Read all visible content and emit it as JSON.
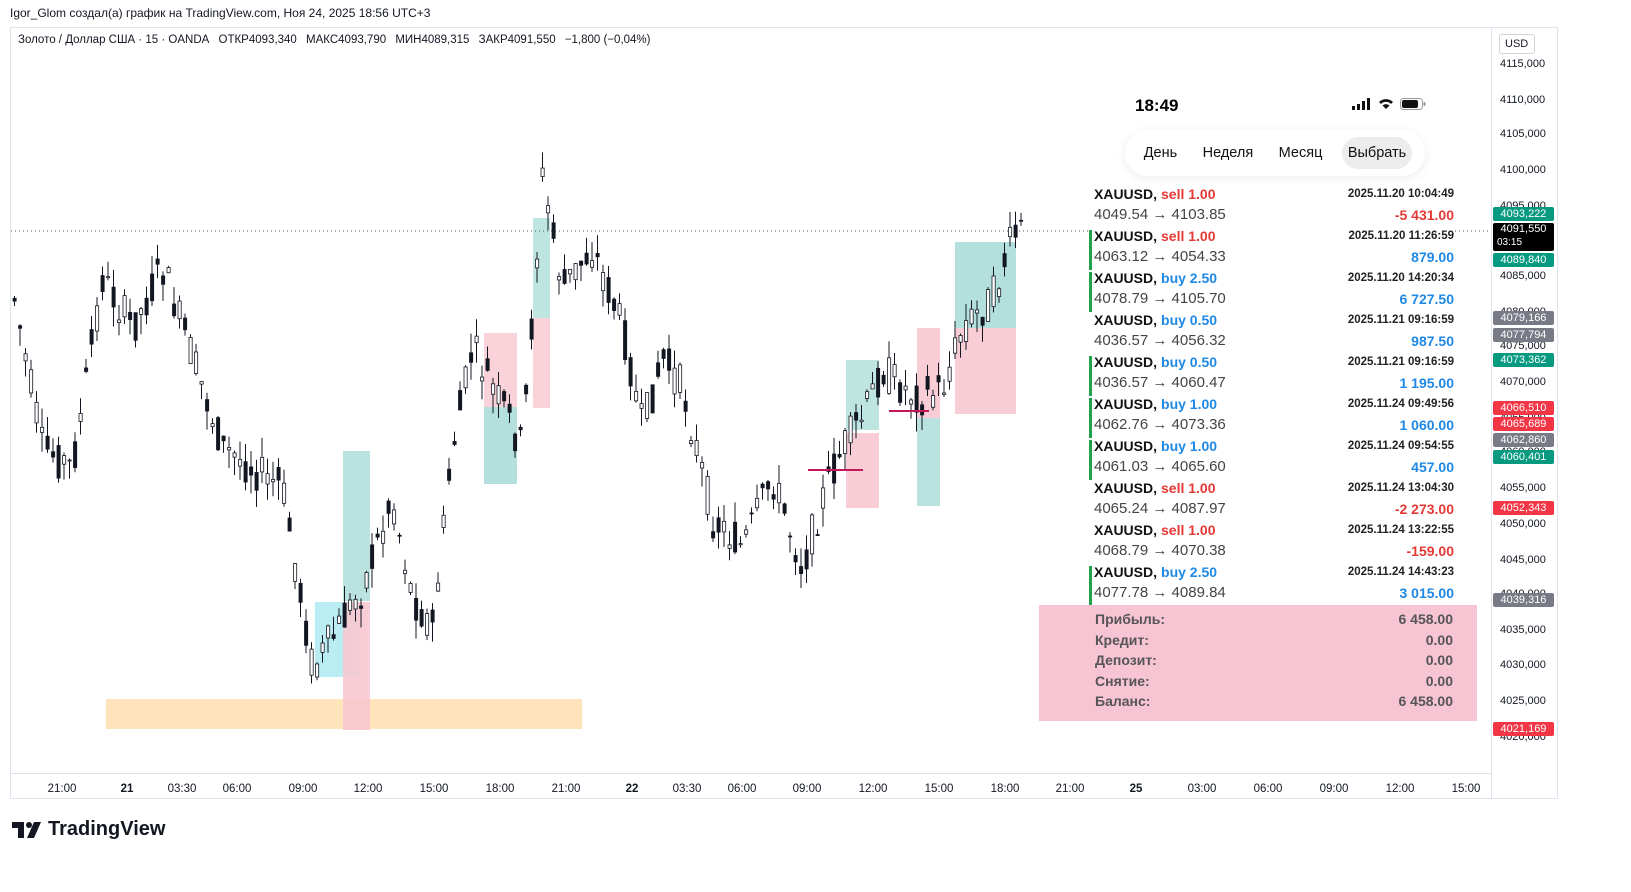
{
  "header_line": "Igor_Glom создал(а) график на TradingView.com, Ноя 24, 2025 18:56 UTC+3",
  "symbol_line": {
    "name": "Золото / Доллар США · 15 · OANDA",
    "open": "ОТКР4093,340",
    "high": "МАКС4093,790",
    "low": "МИН4089,315",
    "close": "ЗАКР4091,550",
    "change": "−1,800 (−0,04%)"
  },
  "currency": "USD",
  "price_ticks": [
    "4115,000",
    "4110,000",
    "4105,000",
    "4100,000",
    "4095,000",
    "4090,000",
    "4085,000",
    "4080,000",
    "4075,000",
    "4070,000",
    "4065,000",
    "4060,000",
    "4055,000",
    "4050,000",
    "4045,000",
    "4040,000",
    "4035,000",
    "4030,000",
    "4025,000",
    "4020,000"
  ],
  "price_labels": [
    {
      "text": "4093,222",
      "color": "#089981"
    },
    {
      "text": "4091,550",
      "sub": "03:15",
      "color": "#000000"
    },
    {
      "text": "4089,840",
      "color": "#089981"
    },
    {
      "text": "4079,166",
      "color": "#787b86"
    },
    {
      "text": "4077,794",
      "color": "#787b86"
    },
    {
      "text": "4073,362",
      "color": "#089981"
    },
    {
      "text": "4066,510",
      "color": "#f23645"
    },
    {
      "text": "4065,689",
      "color": "#f23645"
    },
    {
      "text": "4062,860",
      "color": "#787b86"
    },
    {
      "text": "4060,401",
      "color": "#089981"
    },
    {
      "text": "4052,343",
      "color": "#f23645"
    },
    {
      "text": "4039,316",
      "color": "#787b86"
    },
    {
      "text": "4021,169",
      "color": "#f23645"
    }
  ],
  "time_ticks": [
    {
      "text": "21:00",
      "bold": false
    },
    {
      "text": "21",
      "bold": true
    },
    {
      "text": "03:30",
      "bold": false
    },
    {
      "text": "06:00",
      "bold": false
    },
    {
      "text": "09:00",
      "bold": false
    },
    {
      "text": "12:00",
      "bold": false
    },
    {
      "text": "15:00",
      "bold": false
    },
    {
      "text": "18:00",
      "bold": false
    },
    {
      "text": "21:00",
      "bold": false
    },
    {
      "text": "22",
      "bold": true
    },
    {
      "text": "03:30",
      "bold": false
    },
    {
      "text": "06:00",
      "bold": false
    },
    {
      "text": "09:00",
      "bold": false
    },
    {
      "text": "12:00",
      "bold": false
    },
    {
      "text": "15:00",
      "bold": false
    },
    {
      "text": "18:00",
      "bold": false
    },
    {
      "text": "21:00",
      "bold": false
    },
    {
      "text": "25",
      "bold": true
    },
    {
      "text": "03:00",
      "bold": false
    },
    {
      "text": "06:00",
      "bold": false
    },
    {
      "text": "09:00",
      "bold": false
    },
    {
      "text": "12:00",
      "bold": false
    },
    {
      "text": "15:00",
      "bold": false
    }
  ],
  "logo_text": "TradingView",
  "phone": {
    "time": "18:49",
    "tabs": [
      "День",
      "Неделя",
      "Месяц",
      "Выбрать"
    ],
    "selected_tab": "Выбрать",
    "trades": [
      {
        "symbol": "XAUUSD,",
        "side": "sell",
        "volume": "sell 1.00",
        "prices": "4049.54 → 4103.85",
        "datetime": "2025.11.20 10:04:49",
        "profit": "-5 431.00",
        "marked": false
      },
      {
        "symbol": "XAUUSD,",
        "side": "sell",
        "volume": "sell 1.00",
        "prices": "4063.12 → 4054.33",
        "datetime": "2025.11.20 11:26:59",
        "profit": "879.00",
        "marked": true
      },
      {
        "symbol": "XAUUSD,",
        "side": "buy",
        "volume": "buy 2.50",
        "prices": "4078.79 → 4105.70",
        "datetime": "2025.11.20 14:20:34",
        "profit": "6 727.50",
        "marked": true
      },
      {
        "symbol": "XAUUSD,",
        "side": "buy",
        "volume": "buy 0.50",
        "prices": "4036.57 → 4056.32",
        "datetime": "2025.11.21 09:16:59",
        "profit": "987.50",
        "marked": false
      },
      {
        "symbol": "XAUUSD,",
        "side": "buy",
        "volume": "buy 0.50",
        "prices": "4036.57 → 4060.47",
        "datetime": "2025.11.21 09:16:59",
        "profit": "1 195.00",
        "marked": true
      },
      {
        "symbol": "XAUUSD,",
        "side": "buy",
        "volume": "buy 1.00",
        "prices": "4062.76 → 4073.36",
        "datetime": "2025.11.24 09:49:56",
        "profit": "1 060.00",
        "marked": true
      },
      {
        "symbol": "XAUUSD,",
        "side": "buy",
        "volume": "buy 1.00",
        "prices": "4061.03 → 4065.60",
        "datetime": "2025.11.24 09:54:55",
        "profit": "457.00",
        "marked": true
      },
      {
        "symbol": "XAUUSD,",
        "side": "sell",
        "volume": "sell 1.00",
        "prices": "4065.24 → 4087.97",
        "datetime": "2025.11.24 13:04:30",
        "profit": "-2 273.00",
        "marked": false
      },
      {
        "symbol": "XAUUSD,",
        "side": "sell",
        "volume": "sell 1.00",
        "prices": "4068.79 → 4070.38",
        "datetime": "2025.11.24 13:22:55",
        "profit": "-159.00",
        "marked": false
      },
      {
        "symbol": "XAUUSD,",
        "side": "buy",
        "volume": "buy 2.50",
        "prices": "4077.78 → 4089.84",
        "datetime": "2025.11.24 14:43:23",
        "profit": "3 015.00",
        "marked": true
      }
    ],
    "summary": [
      {
        "label": "Прибыль:",
        "value": "6 458.00"
      },
      {
        "label": "Кредит:",
        "value": "0.00"
      },
      {
        "label": "Депозит:",
        "value": "0.00"
      },
      {
        "label": "Снятие:",
        "value": "0.00"
      },
      {
        "label": "Баланс:",
        "value": "6 458.00"
      }
    ]
  },
  "colors": {
    "up": "#089981",
    "down": "#131722",
    "candle": "#131722",
    "green_zone": "#b2dfdb",
    "red_zone": "#f8c8d0",
    "orange_zone": "#ffe0b2",
    "summary_bg": "#f6c4d3"
  }
}
